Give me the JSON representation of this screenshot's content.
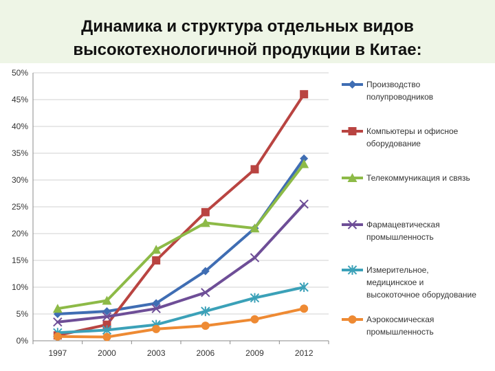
{
  "title_lines": [
    "Динамика и структура отдельных видов",
    "высокотехнологичной продукции в Китае:"
  ],
  "chart_data": {
    "type": "line",
    "title": "Динамика и структура отдельных видов высокотехнологичной продукции в Китае:",
    "x": [
      "1997",
      "2000",
      "2003",
      "2006",
      "2009",
      "2012"
    ],
    "ylim": [
      0,
      50
    ],
    "yticks": [
      "0%",
      "5%",
      "10%",
      "15%",
      "20%",
      "25%",
      "30%",
      "35%",
      "40%",
      "45%",
      "50%"
    ],
    "grid": "horizontal",
    "legend_position": "right",
    "series": [
      {
        "name": "Производство полупроводников",
        "legend_lines": [
          "Производство",
          "полупроводников"
        ],
        "color": "#3f6db3",
        "marker": "diamond",
        "values": [
          5.0,
          5.5,
          7.0,
          13.0,
          21.0,
          34.0
        ]
      },
      {
        "name": "Компьютеры и офисное оборудование",
        "legend_lines": [
          "Компьютеры и офисное",
          "оборудование"
        ],
        "color": "#b94441",
        "marker": "square",
        "values": [
          1.0,
          3.0,
          15.0,
          24.0,
          32.0,
          46.0
        ]
      },
      {
        "name": "Телекоммуникация и связь",
        "legend_lines": [
          "Телекоммуникация и связь"
        ],
        "color": "#8dba47",
        "marker": "triangle",
        "values": [
          6.0,
          7.5,
          17.0,
          22.0,
          21.0,
          33.0
        ]
      },
      {
        "name": "Фармацевтическая промышленность",
        "legend_lines": [
          "Фармацевтическая",
          "промышленность"
        ],
        "color": "#6e4e97",
        "marker": "x",
        "values": [
          3.5,
          4.5,
          6.0,
          9.0,
          15.5,
          25.5
        ]
      },
      {
        "name": "Измерительное, медицинское и высокоточное оборудование",
        "legend_lines": [
          "Измерительное,",
          "медицинское и",
          "высокоточное оборудование"
        ],
        "color": "#3ba1b8",
        "marker": "star",
        "values": [
          1.5,
          2.0,
          3.0,
          5.5,
          8.0,
          10.0
        ]
      },
      {
        "name": "Аэрокосмическая промышленность",
        "legend_lines": [
          "Аэрокосмическая",
          "промышленность"
        ],
        "color": "#ee8a33",
        "marker": "circle",
        "values": [
          0.8,
          0.7,
          2.2,
          2.8,
          4.0,
          6.0
        ]
      }
    ]
  }
}
